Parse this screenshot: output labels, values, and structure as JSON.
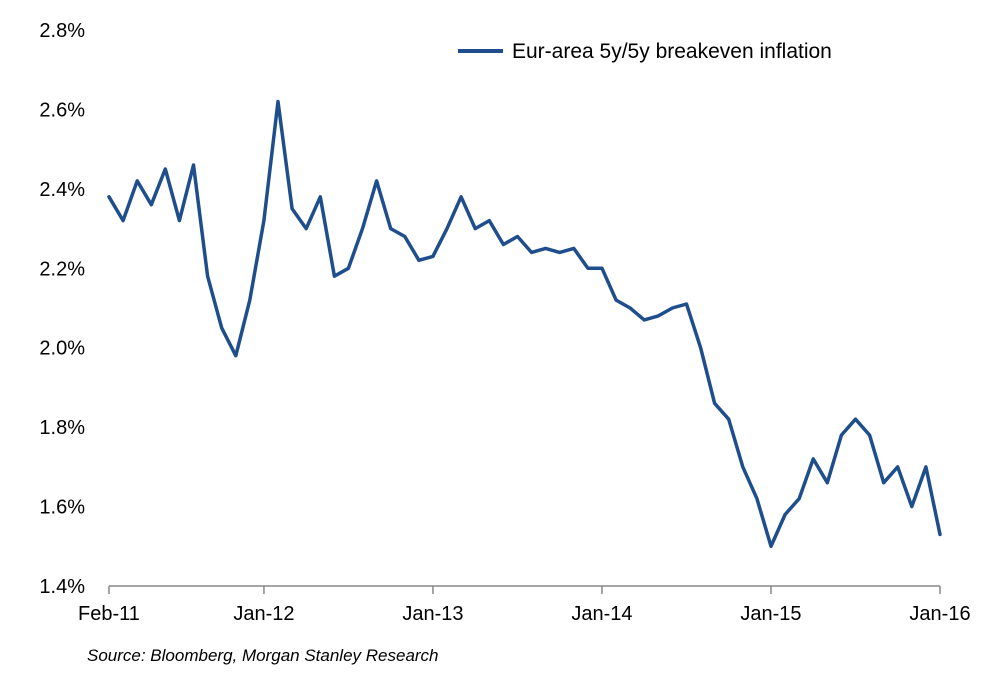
{
  "chart_data": {
    "type": "line",
    "title": "",
    "xlabel": "",
    "ylabel": "",
    "x_ticks": [
      "Feb-11",
      "Jan-12",
      "Jan-13",
      "Jan-14",
      "Jan-15",
      "Jan-16"
    ],
    "y_ticks": [
      "1.4%",
      "1.6%",
      "1.8%",
      "2.0%",
      "2.2%",
      "2.4%",
      "2.6%",
      "2.8%"
    ],
    "xlim": [
      "2011-02",
      "2016-01"
    ],
    "ylim": [
      1.4,
      2.8
    ],
    "y_unit": "%",
    "grid": false,
    "legend_position": "top-right",
    "line_color": "#1f4e8c",
    "series": [
      {
        "name": "Eur-area 5y/5y breakeven inflation",
        "x": [
          "2011-02",
          "2011-03",
          "2011-04",
          "2011-05",
          "2011-06",
          "2011-07",
          "2011-08",
          "2011-09",
          "2011-10",
          "2011-11",
          "2011-12",
          "2012-01",
          "2012-02",
          "2012-03",
          "2012-04",
          "2012-05",
          "2012-06",
          "2012-07",
          "2012-08",
          "2012-09",
          "2012-10",
          "2012-11",
          "2012-12",
          "2013-01",
          "2013-02",
          "2013-03",
          "2013-04",
          "2013-05",
          "2013-06",
          "2013-07",
          "2013-08",
          "2013-09",
          "2013-10",
          "2013-11",
          "2013-12",
          "2014-01",
          "2014-02",
          "2014-03",
          "2014-04",
          "2014-05",
          "2014-06",
          "2014-07",
          "2014-08",
          "2014-09",
          "2014-10",
          "2014-11",
          "2014-12",
          "2015-01",
          "2015-02",
          "2015-03",
          "2015-04",
          "2015-05",
          "2015-06",
          "2015-07",
          "2015-08",
          "2015-09",
          "2015-10",
          "2015-11",
          "2015-12",
          "2016-01"
        ],
        "values": [
          2.38,
          2.32,
          2.42,
          2.36,
          2.45,
          2.32,
          2.46,
          2.18,
          2.05,
          1.98,
          2.12,
          2.32,
          2.62,
          2.35,
          2.3,
          2.38,
          2.18,
          2.2,
          2.3,
          2.42,
          2.3,
          2.28,
          2.22,
          2.23,
          2.3,
          2.38,
          2.3,
          2.32,
          2.26,
          2.28,
          2.24,
          2.25,
          2.24,
          2.25,
          2.2,
          2.2,
          2.12,
          2.1,
          2.07,
          2.08,
          2.1,
          2.11,
          2.0,
          1.86,
          1.82,
          1.7,
          1.62,
          1.5,
          1.58,
          1.62,
          1.72,
          1.66,
          1.78,
          1.82,
          1.78,
          1.66,
          1.7,
          1.6,
          1.7,
          1.53
        ]
      }
    ]
  },
  "source_note": "Source: Bloomberg,  Morgan Stanley Research"
}
